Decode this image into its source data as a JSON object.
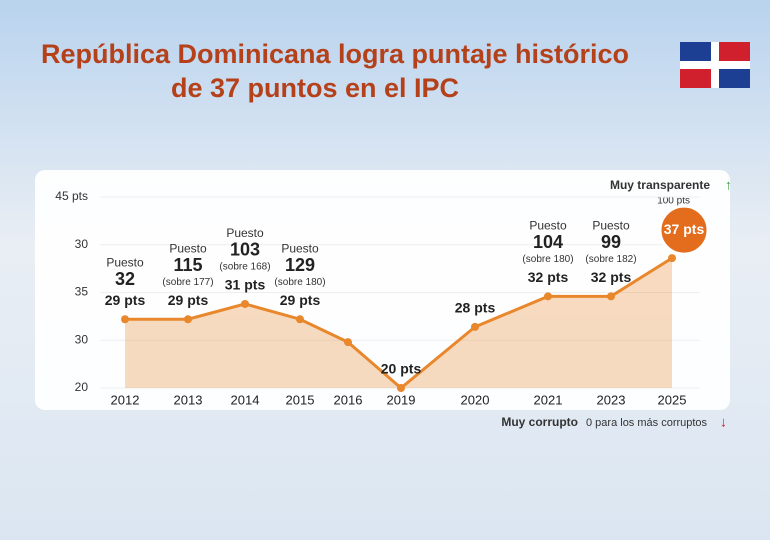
{
  "title_lines": [
    "República Dominicana logra puntaje histórico",
    "de 37 puntos en el IPC"
  ],
  "chart_data": {
    "type": "line",
    "categories": [
      "2012",
      "2013",
      "2014",
      "2015",
      "2016",
      "2019",
      "2020",
      "2021",
      "2023",
      "2025"
    ],
    "series": [
      {
        "color": "#e8872b",
        "values": [
          29,
          29,
          31,
          29,
          26,
          20,
          28,
          32,
          32,
          37
        ]
      }
    ],
    "value_labels": [
      "29 pts",
      "29 pts",
      "31 pts",
      "29 pts",
      null,
      "20 pts",
      "28 pts",
      "32 pts",
      "32 pts",
      "37 pts"
    ],
    "ylim": [
      20,
      45
    ],
    "y_axis_labels": [
      "45 pts",
      "30",
      "35",
      "30",
      "20"
    ],
    "ranks": [
      {
        "label": "Puesto",
        "rank": 32
      },
      {
        "label": "Puesto",
        "rank": 115,
        "of": "(sobre 177)"
      },
      {
        "label": "Puesto",
        "rank": 103,
        "of": "(sobre 168)"
      },
      {
        "label": "Puesto",
        "rank": 129,
        "of": "(sobre 180)"
      },
      null,
      null,
      null,
      {
        "label": "Puesto",
        "rank": 104,
        "of": "(sobre 180)"
      },
      {
        "label": "Puesto",
        "rank": 99,
        "of": "(sobre 182)"
      },
      null
    ],
    "top_note": {
      "label": "Muy transparente",
      "sub": "100 pts"
    },
    "bottom_note": {
      "label": "Muy corrupto",
      "sub": "0 para los más corruptos"
    }
  }
}
